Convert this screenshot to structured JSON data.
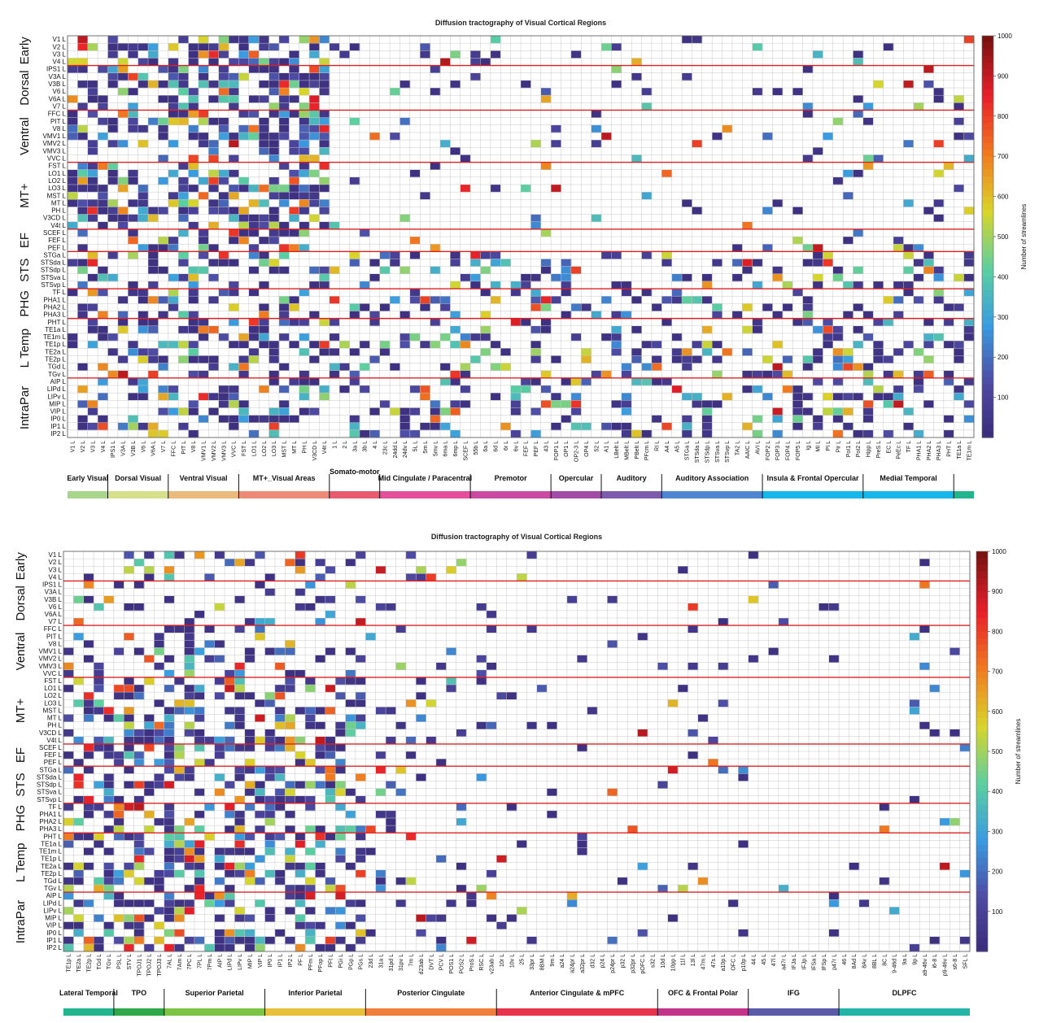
{
  "colors": {
    "grid": "#c8c8c8",
    "separator": "#e02020",
    "colormap": [
      "#3a2a78",
      "#4e4aa2",
      "#3a9be0",
      "#5ccfa0",
      "#d9d52a",
      "#f07a20",
      "#e8202a",
      "#7a1212"
    ]
  },
  "row_labels": [
    "V1 L",
    "V2 L",
    "V3 L",
    "V4 L",
    "IPS1 L",
    "V3A L",
    "V3B L",
    "V6 L",
    "V6A L",
    "V7 L",
    "FFC L",
    "PIT L",
    "V8 L",
    "VMV1 L",
    "VMV2 L",
    "VMV3 L",
    "VVC L",
    "FST L",
    "LO1 L",
    "LO2 L",
    "LO3 L",
    "MST L",
    "MT L",
    "PH L",
    "V3CD L",
    "V4t L",
    "SCEF L",
    "FEF L",
    "PEF L",
    "STGa L",
    "STSda L",
    "STSdp L",
    "STSva L",
    "STSvp L",
    "TF L",
    "PHA1 L",
    "PHA2 L",
    "PHA3 L",
    "PHT L",
    "TE1a L",
    "TE1m L",
    "TE1p L",
    "TE2a L",
    "TE2p L",
    "TGd L",
    "TGv L",
    "AIP L",
    "LIPd L",
    "LIPv L",
    "MIP L",
    "VIP L",
    "IP0 L",
    "IP1 L",
    "IP2 L"
  ],
  "row_groups": [
    {
      "label": "Early",
      "start": 0,
      "end": 3
    },
    {
      "label": "Dorsal",
      "start": 4,
      "end": 9
    },
    {
      "label": "Ventral",
      "start": 10,
      "end": 16
    },
    {
      "label": "MT+",
      "start": 17,
      "end": 25
    },
    {
      "label": "EF",
      "start": 26,
      "end": 28
    },
    {
      "label": "STS",
      "start": 29,
      "end": 33
    },
    {
      "label": "PHG",
      "start": 34,
      "end": 37
    },
    {
      "label": "L Temp",
      "start": 38,
      "end": 45
    },
    {
      "label": "IntraPar",
      "start": 46,
      "end": 53
    }
  ],
  "chart_data": [
    {
      "type": "heatmap",
      "title": "Diffusion tractography of Visual Cortical Regions",
      "colorbar_label": "Number of streamlines",
      "colorbar_ticks": [
        "100",
        "200",
        "300",
        "400",
        "500",
        "600",
        "700",
        "800",
        "900",
        "1000"
      ],
      "zlim": [
        0,
        1000
      ],
      "columns": [
        "V1 L",
        "V2 L",
        "V3 L",
        "V4 L",
        "IPS1 L",
        "V3A L",
        "V3B L",
        "V6 L",
        "V6A L",
        "V7 L",
        "FFC L",
        "PIT L",
        "V8 L",
        "VMV1 L",
        "VMV2 L",
        "VMV3 L",
        "VVC L",
        "FST L",
        "LO1 L",
        "LO2 L",
        "LO3 L",
        "MST L",
        "MT L",
        "PH L",
        "V3CD L",
        "V4t L",
        "1 L",
        "2 L",
        "3a L",
        "3b L",
        "4 L",
        "23c L",
        "24dd L",
        "24dv L",
        "5L L",
        "5m L",
        "5mv L",
        "6ma L",
        "6mp L",
        "SCEF L",
        "55b L",
        "6a L",
        "6d L",
        "6r L",
        "6v L",
        "FEF L",
        "PEF L",
        "43 L",
        "FOP1 L",
        "OP1 L",
        "OP2-3 L",
        "OP4 L",
        "52 L",
        "A1 L",
        "LBelt L",
        "MBelt L",
        "PBelt L",
        "PFcm L",
        "RI L",
        "A4 L",
        "A5 L",
        "STGa L",
        "STSda L",
        "STSdp L",
        "STSva L",
        "STSvp L",
        "TA2 L",
        "AAIC L",
        "AVI L",
        "FOP2 L",
        "FOP3 L",
        "FOP4 L",
        "FOP5 L",
        "Ig L",
        "MI L",
        "PI L",
        "Pir L",
        "PoI1 L",
        "PoI2 L",
        "Hipp L",
        "PreS L",
        "EC L",
        "PeEc L",
        "TF L",
        "PHA1 L",
        "PHA2 L",
        "PHA3 L",
        "PHT L",
        "TE1a L",
        "TE1m L"
      ],
      "categories": [
        {
          "label": "Early Visual",
          "color": "#a8d58c",
          "span": 4
        },
        {
          "label": "Dorsal Visual",
          "color": "#d6e08a",
          "span": 6
        },
        {
          "label": "Ventral Visual",
          "color": "#e9b97e",
          "span": 7
        },
        {
          "label": "MT+_Visual Areas",
          "color": "#ec8a78",
          "span": 9
        },
        {
          "label": "Somato-motor",
          "color": "#e85a6e",
          "span": 5
        },
        {
          "label": "Mid Cingulate / Paracentral",
          "color": "#e34f9a",
          "span": 9
        },
        {
          "label": "Premotor",
          "color": "#c94aa0",
          "span": 8
        },
        {
          "label": "Opercular",
          "color": "#a14aa6",
          "span": 5
        },
        {
          "label": "Auditory",
          "color": "#7d5cae",
          "span": 6
        },
        {
          "label": "Auditory Association",
          "color": "#4e86d2",
          "span": 10
        },
        {
          "label": "Insula & Frontal Opercular",
          "color": "#17b6ea",
          "span": 10
        },
        {
          "label": "Medial Temporal",
          "color": "#17b6ea",
          "span": 9
        },
        {
          "label": "",
          "color": "#22b48c",
          "span": 2
        }
      ]
    },
    {
      "type": "heatmap",
      "title": "Diffusion tractography  of Visual Cortical Regions",
      "colorbar_label": "Number of streamlines",
      "colorbar_ticks": [
        "100",
        "200",
        "300",
        "400",
        "500",
        "600",
        "700",
        "800",
        "900",
        "1000"
      ],
      "zlim": [
        0,
        1000
      ],
      "columns": [
        "TE1p L",
        "TE2a L",
        "TE2p L",
        "TGd L",
        "TGv L",
        "PSL L",
        "STV L",
        "TPOJ1 L",
        "TPOJ2 L",
        "TPOJ3 L",
        "7AL L",
        "7Am L",
        "7PC L",
        "7PL L",
        "7Pm L",
        "AIP L",
        "LIPd L",
        "LIPv L",
        "MIP L",
        "VIP L",
        "IP0 L",
        "IP1 L",
        "IP2 L",
        "PF L",
        "PFm L",
        "PFop L",
        "PFt L",
        "PGi L",
        "PGp L",
        "PGs L",
        "23d L",
        "31a L",
        "31pd L",
        "31pv L",
        "7m L",
        "d23ab L",
        "DVT L",
        "PCV L",
        "POS1 L",
        "POS2 L",
        "ProS L",
        "RSC L",
        "v23ab L",
        "10r L",
        "10v L",
        "25 L",
        "33pr L",
        "8BM L",
        "9m L",
        "a24 L",
        "a24pr L",
        "a32pr L",
        "d32 L",
        "p24 L",
        "p24pr L",
        "p32 L",
        "p32pr L",
        "pOFC L",
        "s32 L",
        "10d L",
        "10pp L",
        "11l L",
        "13l L",
        "47m L",
        "47s L",
        "a10p L",
        "OFC L",
        "p10p L",
        "44 L",
        "45 L",
        "47l L",
        "a47r L",
        "IFJa L",
        "IFJp L",
        "IFSa L",
        "IFSp L",
        "p47r L",
        "46 L",
        "8Ad L",
        "8Av L",
        "8BL L",
        "8C L",
        "9-46d L",
        "9a L",
        "9p L",
        "a9-46v L",
        "i6-8 L",
        "p9-46v L",
        "s6-8 L",
        "SFL L"
      ],
      "categories": [
        {
          "label": "Lateral Temporal",
          "color": "#22b48c",
          "span": 5
        },
        {
          "label": "TPO",
          "color": "#2fa84a",
          "span": 5
        },
        {
          "label": "Superior Parietal",
          "color": "#7cc443",
          "span": 10
        },
        {
          "label": "Inferior Parietal",
          "color": "#e7c13a",
          "span": 10
        },
        {
          "label": "Posterior Cingulate",
          "color": "#ef7f3a",
          "span": 13
        },
        {
          "label": "Anterior Cingulate & mPFC",
          "color": "#e8334d",
          "span": 16
        },
        {
          "label": "OFC & Frontal Polar",
          "color": "#c3338a",
          "span": 9
        },
        {
          "label": "IFG",
          "color": "#5b5aa8",
          "span": 9
        },
        {
          "label": "DLPFC",
          "color": "#22b4a6",
          "span": 13
        }
      ]
    }
  ]
}
